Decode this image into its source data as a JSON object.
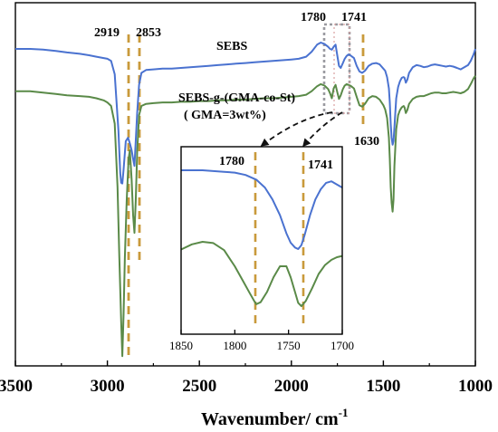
{
  "chart_data": [
    {
      "type": "line",
      "xlabel": "Wavenumber/ cm",
      "xlabel_superscript": "-1",
      "ylabel": "",
      "xlim": [
        3500,
        1000
      ],
      "x_reversed": true,
      "x_ticks": [
        "3500",
        "3000",
        "2500",
        "2000",
        "1500",
        "1000"
      ],
      "grid": false,
      "series": [
        {
          "name": "SEBS",
          "color": "#4a72d0",
          "x": [
            3500,
            3420,
            3350,
            3280,
            3220,
            3150,
            3100,
            3060,
            3020,
            3000,
            2980,
            2960,
            2940,
            2930,
            2925,
            2919,
            2912,
            2900,
            2888,
            2878,
            2868,
            2860,
            2853,
            2846,
            2838,
            2828,
            2815,
            2790,
            2750,
            2700,
            2650,
            2600,
            2550,
            2500,
            2450,
            2400,
            2350,
            2300,
            2250,
            2200,
            2150,
            2100,
            2050,
            2000,
            1960,
            1920,
            1890,
            1860,
            1840,
            1820,
            1800,
            1790,
            1780,
            1770,
            1760,
            1750,
            1741,
            1732,
            1720,
            1710,
            1700,
            1690,
            1680,
            1670,
            1660,
            1645,
            1630,
            1615,
            1600,
            1580,
            1560,
            1540,
            1520,
            1500,
            1490,
            1480,
            1470,
            1465,
            1460,
            1455,
            1450,
            1445,
            1440,
            1430,
            1420,
            1410,
            1400,
            1390,
            1385,
            1378,
            1370,
            1360,
            1340,
            1320,
            1300,
            1280,
            1260,
            1240,
            1220,
            1200,
            1180,
            1160,
            1140,
            1120,
            1100,
            1080,
            1060,
            1040,
            1025,
            1010,
            1000
          ],
          "y": [
            99.6,
            99.6,
            99.5,
            99.3,
            99.1,
            98.9,
            98.7,
            98.5,
            98.3,
            98.2,
            97.9,
            96.0,
            88.0,
            82.0,
            80.6,
            80.5,
            82.5,
            86.5,
            87.0,
            86.2,
            85.2,
            84.0,
            83.0,
            86.5,
            90.5,
            94.5,
            96.2,
            96.6,
            96.7,
            96.8,
            96.8,
            96.9,
            97.0,
            97.1,
            97.2,
            97.3,
            97.4,
            97.5,
            97.6,
            97.7,
            97.8,
            97.9,
            98.0,
            98.1,
            98.2,
            98.5,
            99.2,
            100.2,
            100.5,
            100.3,
            99.9,
            99.6,
            99.5,
            99.9,
            100.2,
            98.6,
            97.2,
            96.9,
            97.6,
            98.2,
            98.6,
            98.8,
            98.7,
            98.5,
            98.3,
            97.2,
            96.4,
            96.2,
            96.5,
            97.2,
            97.5,
            97.6,
            97.4,
            96.8,
            96.5,
            95.6,
            94.0,
            92.0,
            89.0,
            87.0,
            86.0,
            86.5,
            88.5,
            92.6,
            94.2,
            95.0,
            95.5,
            95.6,
            95.5,
            94.8,
            95.2,
            96.2,
            97.0,
            97.3,
            97.2,
            97.0,
            97.1,
            97.3,
            97.4,
            97.3,
            97.2,
            97.1,
            97.2,
            97.1,
            96.9,
            96.7,
            97.0,
            97.3,
            97.9,
            98.8,
            99.6
          ]
        },
        {
          "name": "SEBS-g-(GMA-co-St)",
          "color": "#5a8a48",
          "x": [
            3500,
            3420,
            3350,
            3280,
            3220,
            3150,
            3100,
            3060,
            3020,
            3000,
            2980,
            2960,
            2945,
            2935,
            2925,
            2919,
            2912,
            2905,
            2895,
            2885,
            2878,
            2868,
            2860,
            2853,
            2846,
            2838,
            2828,
            2815,
            2790,
            2750,
            2700,
            2650,
            2600,
            2550,
            2500,
            2450,
            2400,
            2350,
            2300,
            2250,
            2200,
            2150,
            2100,
            2050,
            2000,
            1960,
            1920,
            1890,
            1860,
            1840,
            1820,
            1800,
            1790,
            1780,
            1770,
            1760,
            1750,
            1741,
            1732,
            1720,
            1710,
            1700,
            1690,
            1680,
            1670,
            1660,
            1645,
            1630,
            1615,
            1600,
            1580,
            1560,
            1540,
            1520,
            1500,
            1490,
            1480,
            1470,
            1465,
            1460,
            1455,
            1450,
            1445,
            1440,
            1430,
            1420,
            1410,
            1400,
            1390,
            1385,
            1378,
            1370,
            1360,
            1340,
            1320,
            1300,
            1280,
            1260,
            1240,
            1220,
            1200,
            1180,
            1160,
            1140,
            1120,
            1100,
            1080,
            1060,
            1040,
            1025,
            1010,
            1000
          ],
          "y": [
            93.6,
            93.6,
            93.4,
            93.2,
            93.0,
            92.9,
            92.8,
            92.6,
            92.3,
            92.0,
            91.5,
            89.0,
            80.0,
            70.0,
            61.0,
            56.0,
            62.0,
            70.0,
            78.0,
            84.0,
            85.2,
            81.0,
            76.0,
            73.5,
            78.0,
            85.0,
            90.2,
            91.5,
            91.8,
            91.9,
            92.0,
            92.0,
            92.1,
            92.1,
            92.2,
            92.2,
            92.3,
            92.3,
            92.4,
            92.4,
            92.5,
            92.6,
            92.6,
            92.7,
            92.8,
            92.9,
            93.1,
            93.6,
            94.3,
            94.6,
            94.4,
            93.9,
            93.3,
            92.6,
            94.0,
            94.5,
            93.4,
            92.5,
            93.0,
            93.9,
            94.4,
            94.6,
            94.5,
            94.4,
            94.2,
            94.0,
            92.8,
            91.6,
            91.4,
            91.8,
            92.6,
            92.9,
            92.8,
            92.4,
            91.6,
            91.0,
            89.8,
            87.0,
            84.0,
            80.0,
            77.8,
            76.5,
            78.2,
            83.0,
            88.2,
            90.2,
            90.9,
            91.3,
            91.5,
            91.3,
            90.5,
            90.9,
            91.8,
            92.5,
            92.8,
            92.9,
            92.9,
            93.1,
            93.3,
            93.4,
            93.4,
            93.3,
            93.3,
            93.4,
            93.5,
            93.4,
            93.3,
            93.5,
            93.9,
            94.6,
            95.4,
            95.8
          ]
        }
      ],
      "annotations": {
        "sebs_label": "SEBS",
        "graft_label": "SEBS-g-(GMA-co-St)",
        "graft_sublabel": "( GMA=3wt%)",
        "peak_2919": "2919",
        "peak_2853": "2853",
        "peak_1780": "1780",
        "peak_1741": "1741",
        "peak_1630": "1630"
      }
    },
    {
      "type": "line",
      "role": "inset",
      "xlim": [
        1850,
        1700
      ],
      "x_reversed": true,
      "x_ticks": [
        "1850",
        "1800",
        "1750",
        "1700"
      ],
      "grid": false,
      "marked_peaks": [
        "1780",
        "1741"
      ],
      "series": [
        {
          "name": "SEBS",
          "color": "#4a72d0",
          "x": [
            1850,
            1840,
            1830,
            1820,
            1810,
            1800,
            1790,
            1780,
            1772,
            1765,
            1758,
            1752,
            1748,
            1744,
            1741,
            1738,
            1735,
            1730,
            1725,
            1720,
            1715,
            1710,
            1705,
            1700
          ],
          "y": [
            1.0,
            1.0,
            1.0,
            0.99,
            0.98,
            0.97,
            0.94,
            0.88,
            0.78,
            0.63,
            0.43,
            0.2,
            0.08,
            0.02,
            0.0,
            0.05,
            0.18,
            0.43,
            0.63,
            0.76,
            0.84,
            0.86,
            0.82,
            0.78
          ]
        },
        {
          "name": "SEBS-g-(GMA-co-St)",
          "color": "#5a8a48",
          "x": [
            1850,
            1840,
            1830,
            1820,
            1810,
            1800,
            1792,
            1786,
            1782,
            1780,
            1776,
            1770,
            1764,
            1758,
            1752,
            1748,
            1744,
            1741,
            1738,
            1734,
            1728,
            1722,
            1716,
            1710,
            1705,
            1700
          ],
          "y": [
            0.88,
            0.96,
            1.0,
            0.98,
            0.87,
            0.62,
            0.38,
            0.2,
            0.08,
            0.03,
            0.06,
            0.22,
            0.45,
            0.62,
            0.62,
            0.45,
            0.22,
            0.05,
            0.0,
            0.08,
            0.28,
            0.5,
            0.64,
            0.72,
            0.76,
            0.78
          ]
        }
      ],
      "peak_1780_label": "1780",
      "peak_1741_label": "1741"
    }
  ],
  "colors": {
    "sebs": "#4a72d0",
    "graft": "#5a8a48",
    "peak_marker": "#c99a3b",
    "dotted_box": "#9a9aa0",
    "arrow": "#111111",
    "axis": "#000000"
  }
}
